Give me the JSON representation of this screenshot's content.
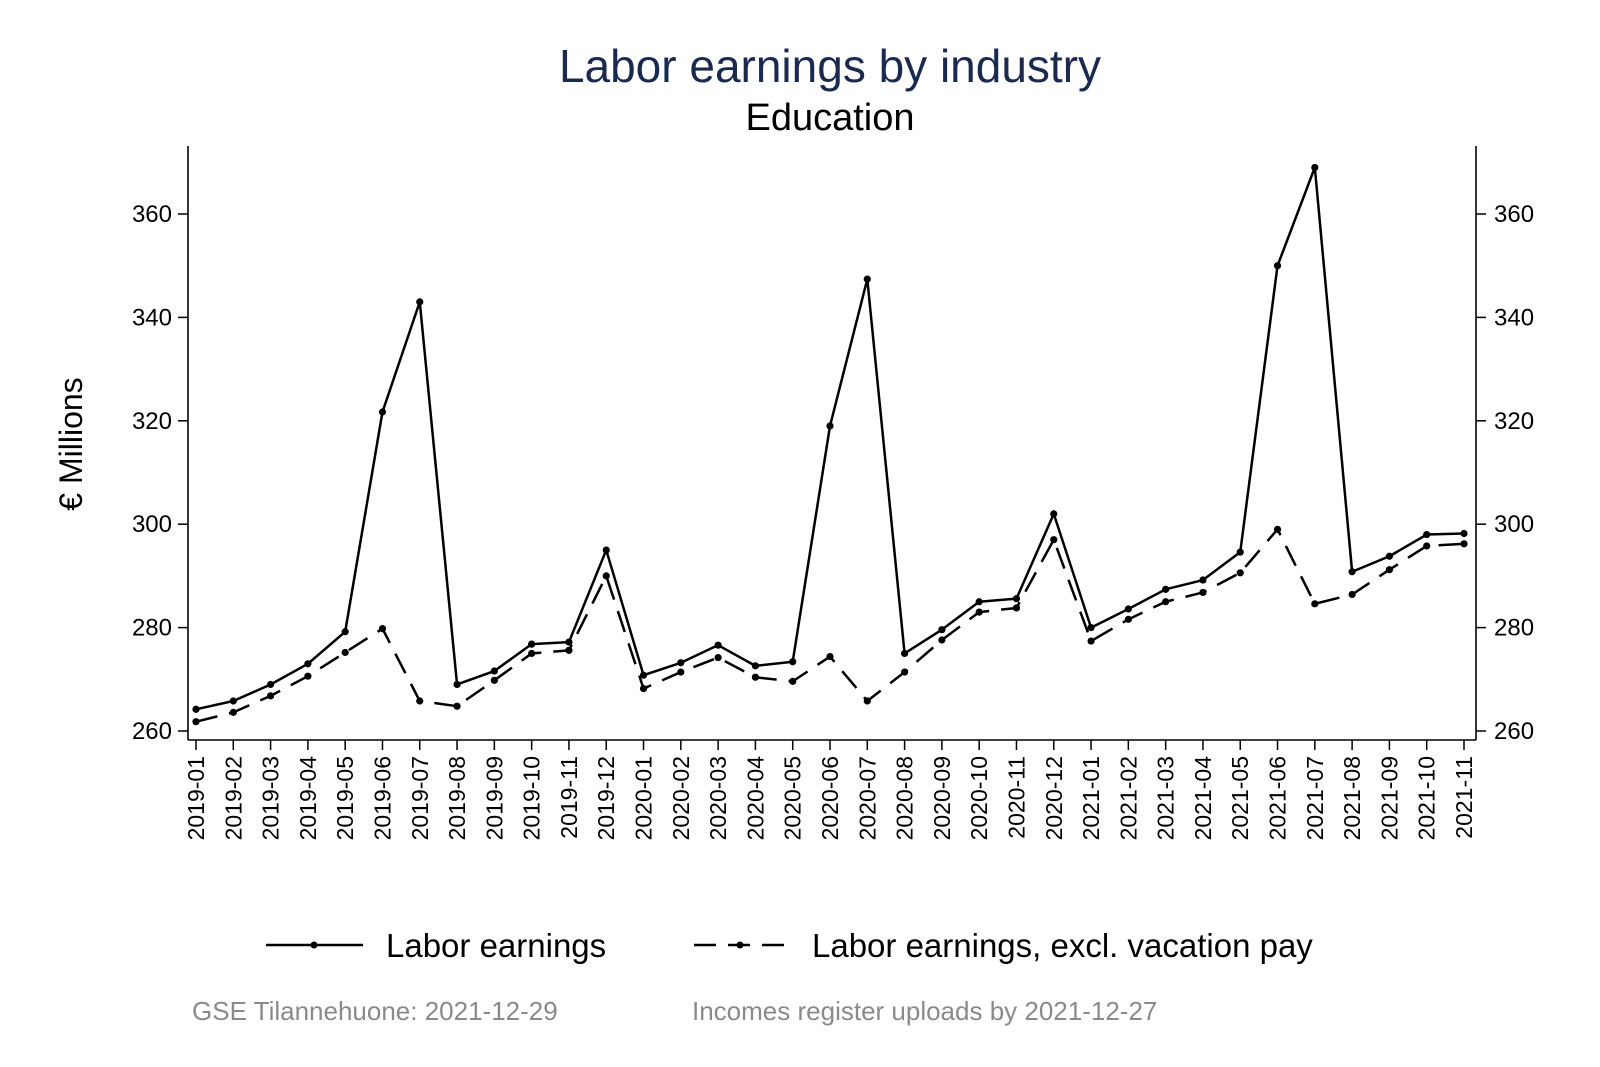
{
  "chart_data": {
    "type": "line",
    "title": "Labor earnings by industry",
    "subtitle": "Education",
    "ylabel": "€ Millions",
    "xlabel": "",
    "ylim": [
      258,
      373
    ],
    "yticks": [
      260,
      280,
      300,
      320,
      340,
      360
    ],
    "grid": false,
    "legend_position": "bottom",
    "categories": [
      "2019-01",
      "2019-02",
      "2019-03",
      "2019-04",
      "2019-05",
      "2019-06",
      "2019-07",
      "2019-08",
      "2019-09",
      "2019-10",
      "2019-11",
      "2019-12",
      "2020-01",
      "2020-02",
      "2020-03",
      "2020-04",
      "2020-05",
      "2020-06",
      "2020-07",
      "2020-08",
      "2020-09",
      "2020-10",
      "2020-11",
      "2020-12",
      "2021-01",
      "2021-02",
      "2021-03",
      "2021-04",
      "2021-05",
      "2021-06",
      "2021-07",
      "2021-08",
      "2021-09",
      "2021-10",
      "2021-11"
    ],
    "series": [
      {
        "name": "Labor earnings",
        "style": "solid",
        "color": "#000000",
        "values": [
          264.2,
          265.8,
          269.0,
          273.0,
          279.2,
          321.7,
          343.0,
          269.0,
          271.6,
          276.8,
          277.2,
          295.0,
          270.8,
          273.2,
          276.6,
          272.6,
          273.4,
          319.0,
          347.4,
          275.0,
          279.6,
          285.0,
          285.6,
          302.0,
          280.0,
          283.6,
          287.4,
          289.2,
          294.6,
          350.0,
          369.0,
          290.8,
          293.8,
          298.0,
          298.2
        ]
      },
      {
        "name": "Labor earnings, excl. vacation pay",
        "style": "dashed",
        "color": "#000000",
        "values": [
          261.8,
          263.6,
          266.8,
          270.6,
          275.2,
          279.8,
          265.8,
          264.8,
          269.8,
          275.0,
          275.6,
          290.0,
          268.2,
          271.4,
          274.2,
          270.4,
          269.6,
          274.4,
          265.8,
          271.4,
          277.6,
          283.0,
          283.8,
          297.0,
          277.4,
          281.6,
          285.0,
          286.8,
          290.6,
          299.0,
          284.6,
          286.4,
          291.2,
          295.8,
          296.2
        ]
      }
    ]
  },
  "note": {
    "left": "GSE Tilannehuone: 2021-12-29",
    "right": "Incomes register uploads by 2021-12-27"
  }
}
